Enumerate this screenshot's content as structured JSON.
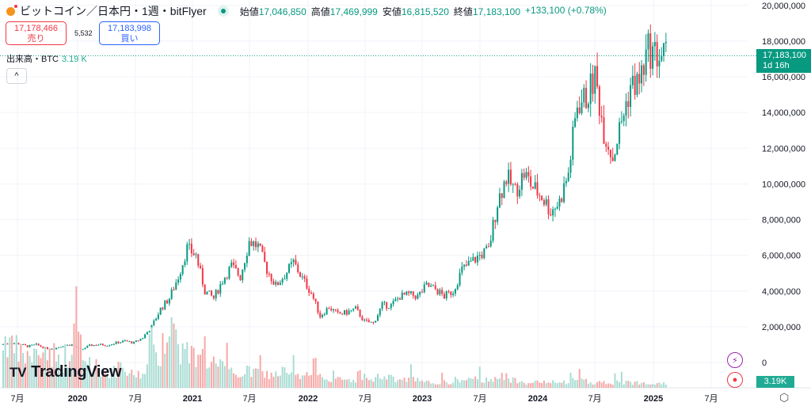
{
  "header": {
    "symbol": "ビットコイン／日本円・1週・bitFlyer",
    "open_label": "始値",
    "open": "17,046,850",
    "high_label": "高値",
    "high": "17,469,999",
    "low_label": "安値",
    "low": "16,815,520",
    "close_label": "終値",
    "close": "17,183,100",
    "change": "+133,100 (+0.78%)"
  },
  "trade": {
    "sell_price": "17,178,466",
    "sell_label": "売り",
    "spread": "5,532",
    "buy_price": "17,183,998",
    "buy_label": "買い"
  },
  "volume": {
    "label": "出来高・BTC",
    "value": "3.19 K"
  },
  "collapse_label": "^",
  "logo": "TradingView",
  "price_tag": {
    "price": "17,183,100",
    "countdown": "1d 16h"
  },
  "volume_tag": "3.19K",
  "colors": {
    "up": "#089981",
    "down": "#f23645",
    "up_vol": "#a9dcd3",
    "down_vol": "#f7a9a7"
  },
  "chart_data": {
    "type": "candlestick",
    "interval": "1W",
    "yaxis_ticks": [
      "20,000,000",
      "18,000,000",
      "16,000,000",
      "14,000,000",
      "12,000,000",
      "10,000,000",
      "8,000,000",
      "6,000,000",
      "4,000,000",
      "2,000,000",
      "0"
    ],
    "ylim": [
      0,
      20000000
    ],
    "xaxis_ticks": [
      "7月",
      "2020",
      "7月",
      "2021",
      "7月",
      "2022",
      "7月",
      "2023",
      "7月",
      "2024",
      "7月",
      "2025",
      "7月"
    ],
    "monthly_close_start": "2019-06",
    "monthly_close_jpy_millions": [
      1.0,
      1.1,
      1.05,
      0.9,
      1.0,
      0.8,
      0.78,
      0.95,
      1.0,
      0.7,
      0.95,
      1.0,
      0.98,
      1.1,
      1.2,
      1.1,
      1.4,
      2.0,
      3.0,
      3.6,
      4.8,
      6.4,
      6.0,
      4.0,
      3.6,
      4.6,
      5.4,
      4.8,
      6.8,
      6.5,
      5.2,
      4.3,
      4.9,
      5.6,
      4.7,
      3.9,
      2.6,
      3.1,
      2.7,
      2.8,
      3.0,
      2.3,
      2.2,
      3.2,
      3.2,
      3.7,
      3.8,
      3.7,
      4.3,
      4.1,
      3.7,
      4.0,
      5.2,
      5.6,
      6.0,
      6.3,
      9.0,
      10.4,
      9.6,
      10.6,
      9.8,
      9.3,
      8.5,
      9.0,
      10.6,
      14.5,
      14.8,
      16.0,
      13.0,
      11.5,
      13.5,
      15.5,
      15.7,
      17.5,
      17.2,
      17.18
    ],
    "monthly_volume_k_btc": [
      20,
      18,
      14,
      12,
      12,
      14,
      13,
      10,
      12,
      18,
      10,
      8,
      6,
      6,
      7,
      5,
      5,
      8,
      12,
      20,
      22,
      14,
      12,
      16,
      10,
      8,
      6,
      5,
      6,
      6,
      5,
      5,
      6,
      5,
      4,
      5,
      8,
      4,
      3,
      3,
      3,
      5,
      3,
      4,
      4,
      3,
      3,
      3,
      2,
      2,
      2,
      2,
      3,
      3,
      3,
      3,
      4,
      4,
      3,
      3,
      2,
      2,
      2,
      2,
      2,
      3,
      3,
      2,
      2,
      2,
      2,
      2,
      2,
      2,
      2,
      2
    ],
    "last_close": 17183100
  }
}
